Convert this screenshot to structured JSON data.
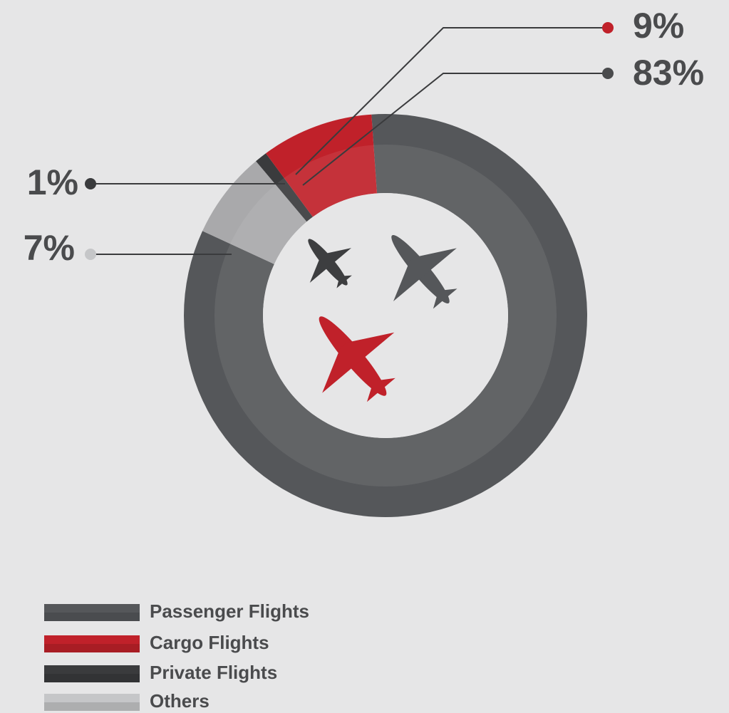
{
  "chart_data": {
    "type": "donut",
    "categories": [
      "Passenger Flights",
      "Cargo Flights",
      "Private Flights",
      "Others"
    ],
    "values": [
      83,
      9,
      1,
      7
    ],
    "value_labels": [
      "83%",
      "9%",
      "1%",
      "7%"
    ],
    "colors": [
      "#55575a",
      "#c0212a",
      "#3a3b3d",
      "#a9a9ab"
    ],
    "legend": "bottom-left"
  }
}
